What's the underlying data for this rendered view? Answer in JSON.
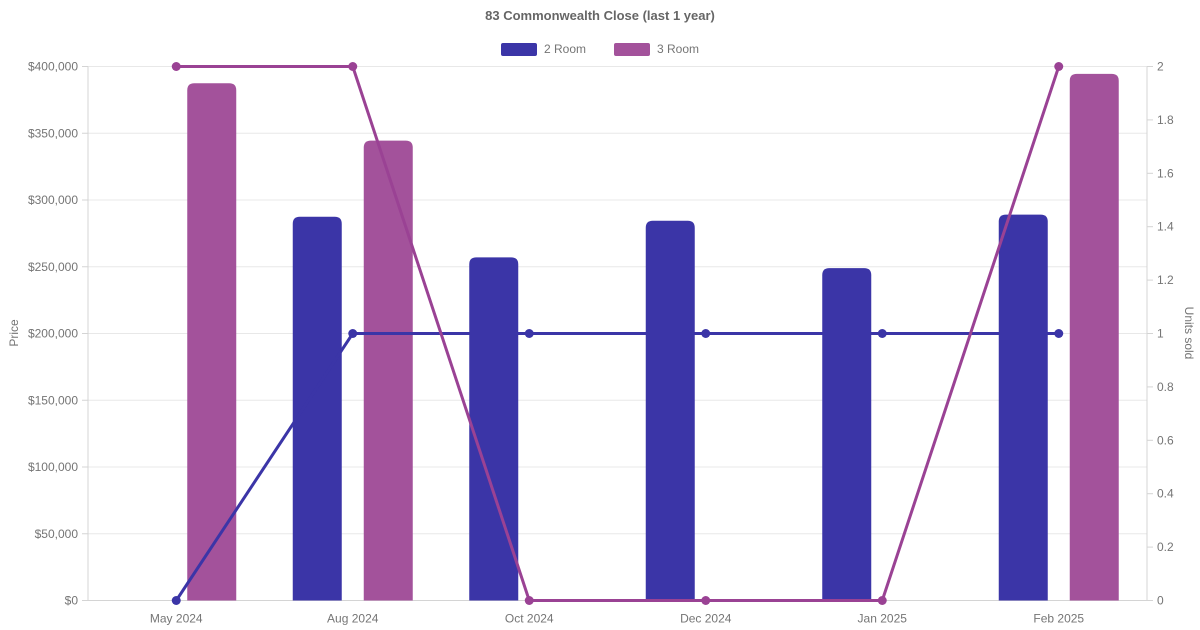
{
  "chart_data": {
    "type": "bar+line combo",
    "title": "83 Commonwealth Close (last 1 year)",
    "categories": [
      "May 2024",
      "Aug 2024",
      "Oct 2024",
      "Dec 2024",
      "Jan 2025",
      "Feb 2025"
    ],
    "series": [
      {
        "name": "2 Room",
        "bar_color": "#3B35A7",
        "line_color": "#3B35A7",
        "prices": [
          null,
          287500,
          257000,
          284500,
          249000,
          289000
        ],
        "units_sold": [
          0,
          1,
          1,
          1,
          1,
          1
        ]
      },
      {
        "name": "3 Room",
        "bar_color": "#A3529B",
        "line_color": "#9A4294",
        "prices": [
          387500,
          344500,
          null,
          null,
          null,
          394500
        ],
        "units_sold": [
          2,
          2,
          0,
          0,
          0,
          2
        ]
      }
    ],
    "y_left": {
      "label": "Price",
      "min": 0,
      "max": 400000,
      "step": 50000,
      "prefix": "$"
    },
    "y_right": {
      "label": "Units sold",
      "min": 0,
      "max": 2,
      "step": 0.2
    },
    "legend_position": "top",
    "grid": true
  },
  "styles": {
    "background": "#ffffff",
    "grid_color": "#e8e8e8",
    "axis_line_color": "#d4d4d4",
    "tick_label_color": "#757575",
    "title_color": "#666666"
  }
}
